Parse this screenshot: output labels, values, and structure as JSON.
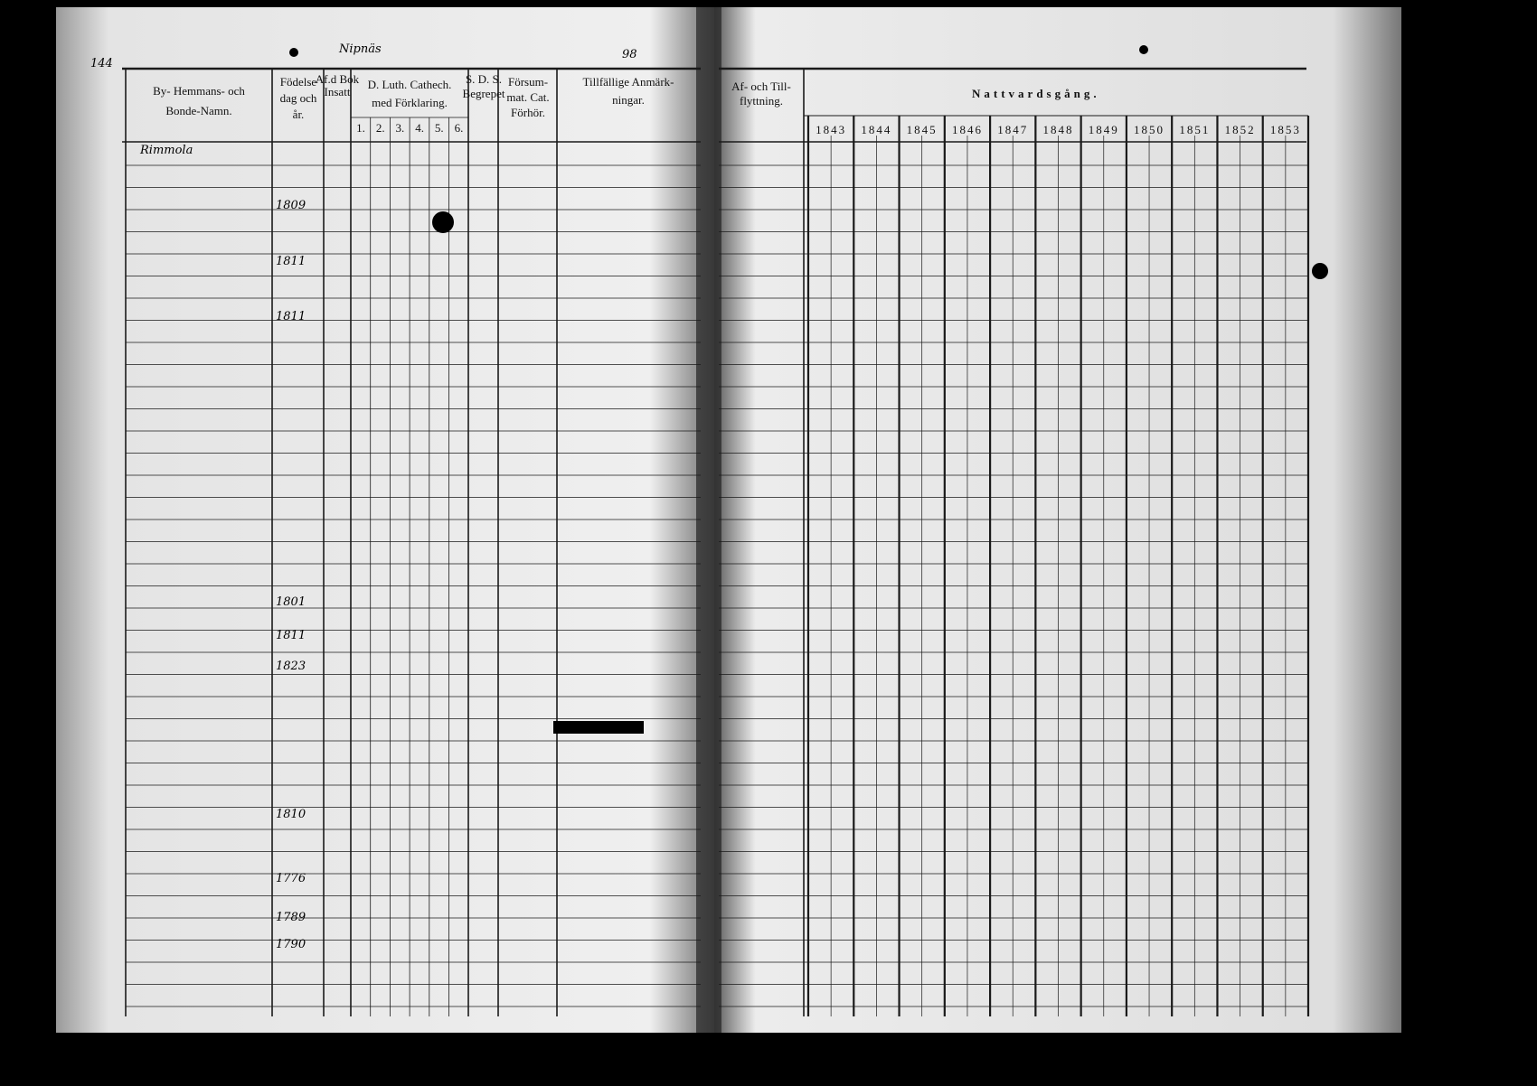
{
  "header": {
    "page_left": "144",
    "parish": "Nipnäs",
    "page_right": "98"
  },
  "columns": {
    "names": [
      "By- Hemmans- och",
      "Bonde-Namn."
    ],
    "birth": [
      "Födelse",
      "dag och",
      "år."
    ],
    "admitted": [
      "Af.d Bok",
      "Insatt"
    ],
    "catechism": [
      "D. Luth. Cathech.",
      "med Förklaring."
    ],
    "catechism_parts": [
      "1.",
      "2.",
      "3.",
      "4.",
      "5.",
      "6."
    ],
    "sds": [
      "S. D. S.",
      "Begrepet"
    ],
    "missed": [
      "Försum-",
      "mat. Cat.",
      "Förhör."
    ],
    "remarks": [
      "Tillfällige Anmärk-",
      "ningar."
    ],
    "moving": [
      "Af- och Till-",
      "flyttning."
    ],
    "communion": "Nattvardsgång.",
    "years": [
      "1843",
      "1844",
      "1845",
      "1846",
      "1847",
      "1848",
      "1849",
      "1850",
      "1851",
      "1852",
      "1853"
    ]
  },
  "entries": {
    "village": "Rimmola",
    "birth_years": [
      "1809",
      "1811",
      "1811",
      "1801",
      "1811",
      "1823",
      "1810",
      "1776",
      "1789",
      "1790"
    ]
  }
}
